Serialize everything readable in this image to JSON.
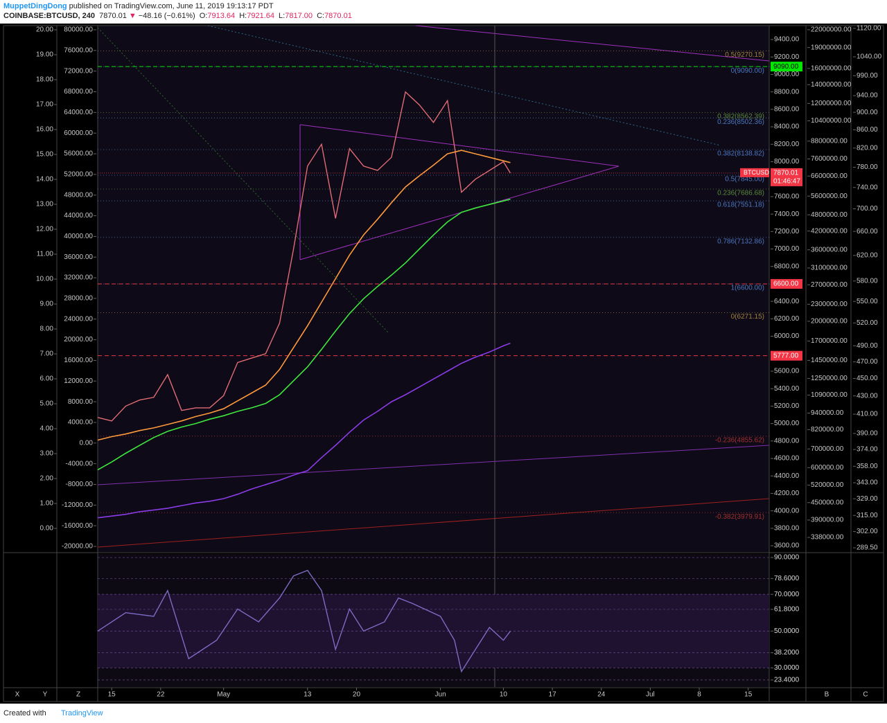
{
  "header": {
    "author": "MuppetDingDong",
    "published": "published on TradingView.com, June 11, 2019 19:13:17 PDT",
    "symbol": "COINBASE:BTCUSD, 240",
    "last": "7870.01",
    "arrow": "▼",
    "change": "−48.16 (−0.61%)",
    "open_label": "O:",
    "open": "7913.64",
    "high_label": "H:",
    "high": "7921.64",
    "low_label": "L:",
    "low": "7817.00",
    "close_label": "C:",
    "close": "7870.01"
  },
  "toolbar": {
    "left": [
      "X",
      "Y",
      "Z"
    ],
    "right": [
      "B",
      "C"
    ]
  },
  "footer": {
    "created": "Created with",
    "brand": "TradingView"
  },
  "chart_data": [
    {
      "type": "line",
      "xlim": [
        "2019-04-13",
        "2019-07-18"
      ],
      "xticks": [
        {
          "value": "2019-04-15",
          "label": "15"
        },
        {
          "value": "2019-04-22",
          "label": "22"
        },
        {
          "value": "2019-05-01",
          "label": "May"
        },
        {
          "value": "2019-05-13",
          "label": "13"
        },
        {
          "value": "2019-05-20",
          "label": "20"
        },
        {
          "value": "2019-06-01",
          "label": "Jun"
        },
        {
          "value": "2019-06-10",
          "label": "10"
        },
        {
          "value": "2019-06-17",
          "label": "17"
        },
        {
          "value": "2019-06-24",
          "label": "24"
        },
        {
          "value": "2019-07-01",
          "label": "Jul"
        },
        {
          "value": "2019-07-08",
          "label": "8"
        },
        {
          "value": "2019-07-15",
          "label": "15"
        }
      ],
      "x": [
        "2019-04-13",
        "2019-04-15",
        "2019-04-17",
        "2019-04-19",
        "2019-04-21",
        "2019-04-23",
        "2019-04-25",
        "2019-04-27",
        "2019-04-29",
        "2019-05-01",
        "2019-05-03",
        "2019-05-05",
        "2019-05-07",
        "2019-05-09",
        "2019-05-11",
        "2019-05-13",
        "2019-05-15",
        "2019-05-17",
        "2019-05-19",
        "2019-05-21",
        "2019-05-23",
        "2019-05-25",
        "2019-05-27",
        "2019-05-29",
        "2019-05-31",
        "2019-06-02",
        "2019-06-04",
        "2019-06-06",
        "2019-06-08",
        "2019-06-10",
        "2019-06-11"
      ],
      "series": [
        {
          "color": "#e06c75",
          "values": [
            5070,
            5030,
            5200,
            5270,
            5300,
            5560,
            5150,
            5180,
            5180,
            5320,
            5700,
            5750,
            5800,
            6150,
            7000,
            7950,
            8200,
            7350,
            8150,
            7950,
            7900,
            8050,
            8800,
            8650,
            8450,
            8700,
            7650,
            7800,
            7900,
            8000,
            7870
          ]
        },
        {
          "color": "#ff9a3c",
          "values": [
            4810,
            4850,
            4880,
            4920,
            4950,
            4990,
            5030,
            5080,
            5120,
            5170,
            5260,
            5350,
            5440,
            5620,
            5870,
            6120,
            6390,
            6660,
            6930,
            7160,
            7340,
            7530,
            7710,
            7840,
            7960,
            8090,
            8130,
            8090,
            8050,
            8010,
            7990
          ]
        },
        {
          "color": "#3ee83e",
          "values": [
            4470,
            4560,
            4660,
            4750,
            4840,
            4910,
            4960,
            5000,
            5050,
            5090,
            5140,
            5180,
            5230,
            5330,
            5490,
            5650,
            5850,
            6060,
            6260,
            6430,
            6570,
            6700,
            6840,
            7000,
            7160,
            7310,
            7420,
            7470,
            7510,
            7550,
            7570
          ]
        },
        {
          "color": "#8a3ce8",
          "values": [
            3920,
            3940,
            3960,
            3990,
            4010,
            4030,
            4060,
            4090,
            4110,
            4140,
            4190,
            4250,
            4300,
            4350,
            4410,
            4460,
            4610,
            4750,
            4900,
            5040,
            5140,
            5250,
            5330,
            5420,
            5510,
            5600,
            5690,
            5760,
            5820,
            5890,
            5920
          ]
        }
      ],
      "ylim": [
        3529,
        9559
      ],
      "yticks": [
        {
          "value": 9400,
          "label": "9400.00"
        },
        {
          "value": 9200,
          "label": "9200.00"
        },
        {
          "value": 9000,
          "label": "9000.00"
        },
        {
          "value": 8800,
          "label": "8800.00"
        },
        {
          "value": 8600,
          "label": "8600.00"
        },
        {
          "value": 8400,
          "label": "8400.00"
        },
        {
          "value": 8200,
          "label": "8200.00"
        },
        {
          "value": 8000,
          "label": "8000.00"
        },
        {
          "value": 7600,
          "label": "7600.00"
        },
        {
          "value": 7400,
          "label": "7400.00"
        },
        {
          "value": 7200,
          "label": "7200.00"
        },
        {
          "value": 7000,
          "label": "7000.00"
        },
        {
          "value": 6800,
          "label": "6800.00"
        },
        {
          "value": 6400,
          "label": "6400.00"
        },
        {
          "value": 6200,
          "label": "6200.00"
        },
        {
          "value": 6000,
          "label": "6000.00"
        },
        {
          "value": 5600,
          "label": "5600.00"
        },
        {
          "value": 5400,
          "label": "5400.00"
        },
        {
          "value": 5200,
          "label": "5200.00"
        },
        {
          "value": 5000,
          "label": "5000.00"
        },
        {
          "value": 4800,
          "label": "4800.00"
        },
        {
          "value": 4600,
          "label": "4600.00"
        },
        {
          "value": 4400,
          "label": "4400.00"
        },
        {
          "value": 4200,
          "label": "4200.00"
        },
        {
          "value": 4000,
          "label": "4000.00"
        },
        {
          "value": 3800,
          "label": "3800.00"
        },
        {
          "value": 3600,
          "label": "3600.00"
        }
      ],
      "y2lim": [
        300000,
        22750000
      ],
      "y2log": true,
      "y2ticks": [
        {
          "value": 22000000,
          "label": "22000000.00"
        },
        {
          "value": 19000000,
          "label": "19000000.00"
        },
        {
          "value": 16000000,
          "label": "16000000.00"
        },
        {
          "value": 14000000,
          "label": "14000000.00"
        },
        {
          "value": 12000000,
          "label": "12000000.00"
        },
        {
          "value": 10400000,
          "label": "10400000.00"
        },
        {
          "value": 8800000,
          "label": "8800000.00"
        },
        {
          "value": 7600000,
          "label": "7600000.00"
        },
        {
          "value": 6600000,
          "label": "6600000.00"
        },
        {
          "value": 5600000,
          "label": "5600000.00"
        },
        {
          "value": 4800000,
          "label": "4800000.00"
        },
        {
          "value": 4200000,
          "label": "4200000.00"
        },
        {
          "value": 3600000,
          "label": "3600000.00"
        },
        {
          "value": 3100000,
          "label": "3100000.00"
        },
        {
          "value": 2700000,
          "label": "2700000.00"
        },
        {
          "value": 2300000,
          "label": "2300000.00"
        },
        {
          "value": 2000000,
          "label": "2000000.00"
        },
        {
          "value": 1700000,
          "label": "1700000.00"
        },
        {
          "value": 1450000,
          "label": "1450000.00"
        },
        {
          "value": 1250000,
          "label": "1250000.00"
        },
        {
          "value": 1090000,
          "label": "1090000.00"
        },
        {
          "value": 940000,
          "label": "940000.00"
        },
        {
          "value": 820000,
          "label": "820000.00"
        },
        {
          "value": 700000,
          "label": "700000.00"
        },
        {
          "value": 600000,
          "label": "600000.00"
        },
        {
          "value": 520000,
          "label": "520000.00"
        },
        {
          "value": 450000,
          "label": "450000.00"
        },
        {
          "value": 390000,
          "label": "390000.00"
        },
        {
          "value": 338000,
          "label": "338000.00"
        }
      ],
      "y3lim": [
        286.4,
        1128
      ],
      "y3log": true,
      "y3ticks": [
        {
          "value": 1120,
          "label": "1120.00"
        },
        {
          "value": 1040,
          "label": "1040.00"
        },
        {
          "value": 990,
          "label": "990.00"
        },
        {
          "value": 940,
          "label": "940.00"
        },
        {
          "value": 900,
          "label": "900.00"
        },
        {
          "value": 860,
          "label": "860.00"
        },
        {
          "value": 820,
          "label": "820.00"
        },
        {
          "value": 780,
          "label": "780.00"
        },
        {
          "value": 740,
          "label": "740.00"
        },
        {
          "value": 700,
          "label": "700.00"
        },
        {
          "value": 660,
          "label": "660.00"
        },
        {
          "value": 620,
          "label": "620.00"
        },
        {
          "value": 580,
          "label": "580.00"
        },
        {
          "value": 550,
          "label": "550.00"
        },
        {
          "value": 520,
          "label": "520.00"
        },
        {
          "value": 490,
          "label": "490.00"
        },
        {
          "value": 470,
          "label": "470.00"
        },
        {
          "value": 450,
          "label": "450.00"
        },
        {
          "value": 430,
          "label": "430.00"
        },
        {
          "value": 410,
          "label": "410.00"
        },
        {
          "value": 390,
          "label": "390.00"
        },
        {
          "value": 374,
          "label": "374.00"
        },
        {
          "value": 358,
          "label": "358.00"
        },
        {
          "value": 343,
          "label": "343.00"
        },
        {
          "value": 329,
          "label": "329.00"
        },
        {
          "value": 315,
          "label": "315.00"
        },
        {
          "value": 302,
          "label": "302.00"
        },
        {
          "value": 289.5,
          "label": "289.50"
        }
      ],
      "y4lim": [
        -21072,
        80804
      ],
      "y4ticks": [
        {
          "value": 80000,
          "label": "80000.00"
        },
        {
          "value": 76000,
          "label": "76000.00"
        },
        {
          "value": 72000,
          "label": "72000.00"
        },
        {
          "value": 68000,
          "label": "68000.00"
        },
        {
          "value": 64000,
          "label": "64000.00"
        },
        {
          "value": 60000,
          "label": "60000.00"
        },
        {
          "value": 56000,
          "label": "56000.00"
        },
        {
          "value": 52000,
          "label": "52000.00"
        },
        {
          "value": 48000,
          "label": "48000.00"
        },
        {
          "value": 44000,
          "label": "44000.00"
        },
        {
          "value": 40000,
          "label": "40000.00"
        },
        {
          "value": 36000,
          "label": "36000.00"
        },
        {
          "value": 32000,
          "label": "32000.00"
        },
        {
          "value": 28000,
          "label": "28000.00"
        },
        {
          "value": 24000,
          "label": "24000.00"
        },
        {
          "value": 20000,
          "label": "20000.00"
        },
        {
          "value": 16000,
          "label": "16000.00"
        },
        {
          "value": 12000,
          "label": "12000.00"
        },
        {
          "value": 8000,
          "label": "8000.00"
        },
        {
          "value": 4000,
          "label": "4000.00"
        },
        {
          "value": 0,
          "label": "0.00"
        },
        {
          "value": -4000,
          "label": "-4000.00"
        },
        {
          "value": -8000,
          "label": "-8000.00"
        },
        {
          "value": -12000,
          "label": "-12000.00"
        },
        {
          "value": -16000,
          "label": "-16000.00"
        },
        {
          "value": -20000,
          "label": "-20000.00"
        }
      ],
      "y5lim": [
        -0.944,
        20.167
      ],
      "y5ticks": [
        {
          "value": 20,
          "label": "20.00"
        },
        {
          "value": 19,
          "label": "19.00"
        },
        {
          "value": 18,
          "label": "18.00"
        },
        {
          "value": 17,
          "label": "17.00"
        },
        {
          "value": 16,
          "label": "16.00"
        },
        {
          "value": 15,
          "label": "15.00"
        },
        {
          "value": 14,
          "label": "14.00"
        },
        {
          "value": 13,
          "label": "13.00"
        },
        {
          "value": 12,
          "label": "12.00"
        },
        {
          "value": 11,
          "label": "11.00"
        },
        {
          "value": 10,
          "label": "10.00"
        },
        {
          "value": 9,
          "label": "9.00"
        },
        {
          "value": 8,
          "label": "8.00"
        },
        {
          "value": 7,
          "label": "7.00"
        },
        {
          "value": 6,
          "label": "6.00"
        },
        {
          "value": 5,
          "label": "5.00"
        },
        {
          "value": 4,
          "label": "4.00"
        },
        {
          "value": 3,
          "label": "3.00"
        },
        {
          "value": 2,
          "label": "2.00"
        },
        {
          "value": 1,
          "label": "1.00"
        },
        {
          "value": 0,
          "label": "0.00"
        }
      ],
      "annotations": [
        {
          "text": "0.5(9270.15)",
          "value": 9270.15,
          "color": "#a08040"
        },
        {
          "text": "0(9090.00)",
          "value": 9090,
          "color": "#4a78c0"
        },
        {
          "text": "0.382(8562.39)",
          "value": 8562.39,
          "color": "#5a8a3a"
        },
        {
          "text": "0.236(8502.36)",
          "value": 8502.36,
          "color": "#4a78c0"
        },
        {
          "text": "0.382(8138.82)",
          "value": 8138.82,
          "color": "#4a78c0"
        },
        {
          "text": "0.5(7845.00)",
          "value": 7845,
          "color": "#4a78c0"
        },
        {
          "text": "0.236(7686.68)",
          "value": 7686.68,
          "color": "#5a8a3a"
        },
        {
          "text": "0.618(7551.18)",
          "value": 7551.18,
          "color": "#4a78c0"
        },
        {
          "text": "0.786(7132.86)",
          "value": 7132.86,
          "color": "#4a78c0"
        },
        {
          "text": "1(6600.00)",
          "value": 6600,
          "color": "#4a78c0"
        },
        {
          "text": "0(6271.15)",
          "value": 6271.15,
          "color": "#a08040"
        },
        {
          "text": "-0.236(4855.62)",
          "value": 4855.62,
          "color": "#a03030"
        },
        {
          "text": "-0.382(3979.91)",
          "value": 3979.91,
          "color": "#a03030"
        }
      ],
      "price_labels": [
        {
          "value": 9090,
          "label": "9090.00",
          "color": "#00e600"
        },
        {
          "value": 6600,
          "label": "6600.00",
          "color": "#f23645"
        },
        {
          "value": 5777,
          "label": "5777.00",
          "color": "#f23645"
        }
      ],
      "last_price": {
        "symbol": "BTCUSD",
        "value": 7870.01,
        "label": "7870.01",
        "countdown": "01:46:47",
        "color": "#f23645"
      }
    },
    {
      "type": "line",
      "xlim": [
        "2019-04-13",
        "2019-07-18"
      ],
      "x": [
        "2019-04-13",
        "2019-04-17",
        "2019-04-21",
        "2019-04-23",
        "2019-04-26",
        "2019-04-30",
        "2019-05-03",
        "2019-05-06",
        "2019-05-09",
        "2019-05-11",
        "2019-05-13",
        "2019-05-15",
        "2019-05-17",
        "2019-05-19",
        "2019-05-21",
        "2019-05-24",
        "2019-05-26",
        "2019-05-28",
        "2019-06-01",
        "2019-06-03",
        "2019-06-04",
        "2019-06-06",
        "2019-06-08",
        "2019-06-10",
        "2019-06-11"
      ],
      "series": [
        {
          "color": "#7e6bc4",
          "values": [
            50,
            60,
            58,
            72,
            35,
            45,
            62,
            55,
            68,
            80,
            83,
            72,
            40,
            62,
            50,
            55,
            68,
            65,
            58,
            45,
            28,
            40,
            52,
            45,
            50
          ]
        }
      ],
      "ylim": [
        19.6,
        91.9
      ],
      "yticks": [
        {
          "value": 90,
          "label": "90.0000"
        },
        {
          "value": 78.6,
          "label": "78.6000"
        },
        {
          "value": 70,
          "label": "70.0000"
        },
        {
          "value": 61.8,
          "label": "61.8000"
        },
        {
          "value": 50,
          "label": "50.0000"
        },
        {
          "value": 38.2,
          "label": "38.2000"
        },
        {
          "value": 30,
          "label": "30.0000"
        },
        {
          "value": 23.4,
          "label": "23.4000"
        }
      ],
      "band": [
        30,
        70
      ]
    }
  ]
}
